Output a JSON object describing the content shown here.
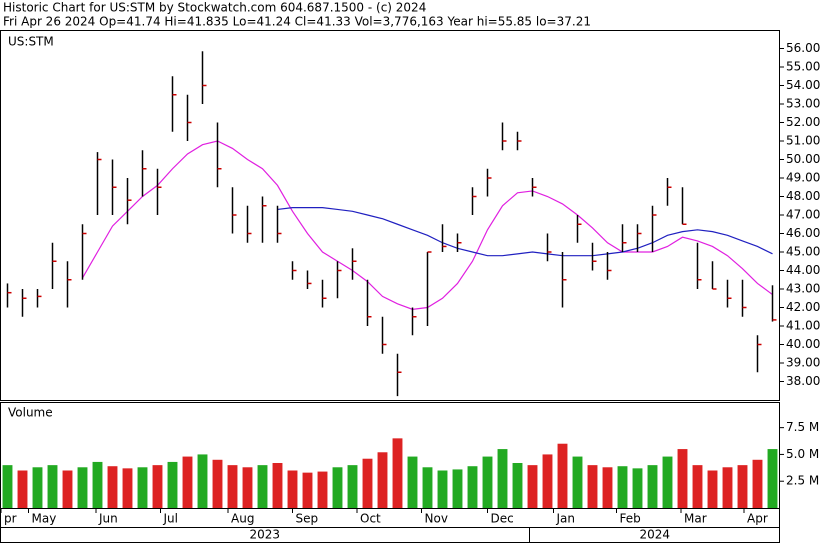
{
  "header": {
    "title": "Historic Chart for US:STM by Stockwatch.com 604.687.1500 - (c) 2024",
    "quote": "Fri Apr 26 2024  Op=41.74  Hi=41.835  Lo=41.24  Cl=41.33  Vol=3,776,163  Year hi=55.85  lo=37.21"
  },
  "chart_data": {
    "type": "ohlc",
    "symbol": "US:STM",
    "bar_color": "#000000",
    "close_color": "#cc0000",
    "x": [
      0,
      1,
      2,
      3,
      4,
      5,
      6,
      7,
      8,
      9,
      10,
      11,
      12,
      13,
      14,
      15,
      16,
      17,
      18,
      19,
      20,
      21,
      22,
      23,
      24,
      25,
      26,
      27,
      28,
      29,
      30,
      31,
      32,
      33,
      34,
      35,
      36,
      37,
      38,
      39,
      40,
      41,
      42,
      43,
      44,
      45,
      46,
      47,
      48,
      49,
      50,
      51
    ],
    "high": [
      43.3,
      43,
      43,
      45.5,
      44.5,
      46.5,
      50.4,
      50,
      49,
      50.5,
      49.5,
      54.5,
      53.5,
      55.85,
      52,
      48.5,
      47.5,
      48,
      47.5,
      44.5,
      44,
      43.5,
      44.5,
      45.2,
      43.5,
      41.5,
      39.5,
      42,
      45,
      46.5,
      46,
      48.5,
      49.5,
      52,
      51.5,
      49,
      46,
      45,
      47,
      45.5,
      45,
      46.5,
      46.5,
      47.5,
      49,
      48.5,
      45.5,
      44.5,
      43.5,
      43.5,
      40.5,
      43.2
    ],
    "low": [
      42,
      41.5,
      42,
      43,
      42,
      43.5,
      47,
      47,
      46.5,
      48,
      47,
      51.5,
      51,
      53,
      48.5,
      46,
      45.5,
      45.5,
      45.5,
      43.5,
      43,
      42,
      42.5,
      43.5,
      41,
      39.5,
      37.21,
      40.5,
      41,
      45,
      45,
      47,
      48,
      50.5,
      50.5,
      48,
      44.5,
      42,
      45.5,
      44,
      43.5,
      45,
      45,
      45,
      47.5,
      46.5,
      43,
      43,
      42,
      41.5,
      38.5,
      41.24
    ],
    "close": [
      42.8,
      42.5,
      42.6,
      44.5,
      43.5,
      46,
      50,
      48.5,
      47.8,
      49.5,
      48.5,
      53.5,
      52,
      54,
      49.5,
      47,
      46,
      47.5,
      46,
      44,
      43.3,
      42.5,
      44,
      44.5,
      41.5,
      40,
      38.5,
      41.5,
      45,
      45.3,
      45.5,
      48,
      49,
      51,
      51,
      48.5,
      45,
      43.5,
      46.5,
      44.5,
      44,
      45.5,
      46,
      47,
      48.5,
      46.5,
      43.5,
      43,
      42.5,
      42,
      40,
      41.33
    ],
    "lines": [
      {
        "color": "#e020e0",
        "values": [
          null,
          null,
          null,
          null,
          null,
          43.6,
          45,
          46.4,
          47.2,
          48,
          48.6,
          49.5,
          50.3,
          50.8,
          51,
          50.6,
          50,
          49.5,
          48.6,
          47.2,
          46,
          45,
          44.5,
          44,
          43.4,
          42.6,
          42.2,
          41.9,
          42,
          42.5,
          43.3,
          44.5,
          46.2,
          47.5,
          48.2,
          48.3,
          48,
          47.6,
          47,
          46.3,
          45.5,
          45,
          45,
          45,
          45.3,
          45.8,
          45.6,
          45.3,
          44.8,
          44.1,
          43.3,
          42.7
        ]
      },
      {
        "color": "#2020c0",
        "values": [
          null,
          null,
          null,
          null,
          null,
          null,
          null,
          null,
          null,
          null,
          null,
          null,
          null,
          null,
          null,
          null,
          null,
          null,
          47.3,
          47.4,
          47.4,
          47.4,
          47.3,
          47.2,
          47,
          46.8,
          46.5,
          46.2,
          45.9,
          45.5,
          45.2,
          45,
          44.8,
          44.8,
          44.9,
          45,
          44.9,
          44.8,
          44.8,
          44.8,
          44.9,
          45,
          45.2,
          45.5,
          45.9,
          46.1,
          46.2,
          46.1,
          45.9,
          45.6,
          45.3,
          44.9
        ]
      }
    ],
    "xlim": [
      -0.5,
      51.5
    ],
    "ylim": [
      37,
      57
    ],
    "yticks": [
      {
        "value": 38,
        "label": "38.00"
      },
      {
        "value": 39,
        "label": "39.00"
      },
      {
        "value": 40,
        "label": "40.00"
      },
      {
        "value": 41,
        "label": "41.00"
      },
      {
        "value": 42,
        "label": "42.00"
      },
      {
        "value": 43,
        "label": "43.00"
      },
      {
        "value": 44,
        "label": "44.00"
      },
      {
        "value": 45,
        "label": "45.00"
      },
      {
        "value": 46,
        "label": "46.00"
      },
      {
        "value": 47,
        "label": "47.00"
      },
      {
        "value": 48,
        "label": "48.00"
      },
      {
        "value": 49,
        "label": "49.00"
      },
      {
        "value": 50,
        "label": "50.00"
      },
      {
        "value": 51,
        "label": "51.00"
      },
      {
        "value": 52,
        "label": "52.00"
      },
      {
        "value": 53,
        "label": "53.00"
      },
      {
        "value": 54,
        "label": "54.00"
      },
      {
        "value": 55,
        "label": "55.00"
      },
      {
        "value": 56,
        "label": "56.00"
      }
    ],
    "xticks": [
      {
        "value": -0.5,
        "label": "pr"
      },
      {
        "value": 1.4,
        "label": "May"
      },
      {
        "value": 5.9,
        "label": "Jun"
      },
      {
        "value": 10.2,
        "label": "Jul"
      },
      {
        "value": 14.7,
        "label": "Aug"
      },
      {
        "value": 19,
        "label": "Sep"
      },
      {
        "value": 23.3,
        "label": "Oct"
      },
      {
        "value": 27.6,
        "label": "Nov"
      },
      {
        "value": 32,
        "label": "Dec"
      },
      {
        "value": 36.4,
        "label": "Jan"
      },
      {
        "value": 40.6,
        "label": "Feb"
      },
      {
        "value": 44.9,
        "label": "Mar"
      },
      {
        "value": 49.1,
        "label": "Apr"
      }
    ],
    "year_ticks": [
      {
        "value": -0.5,
        "label": "2023"
      },
      {
        "value": 34.8,
        "label": "2024"
      }
    ],
    "volume": {
      "label": "Volume",
      "up_color": "#22aa22",
      "down_color": "#dd2222",
      "values": [
        4,
        3.5,
        3.8,
        4,
        3.5,
        3.8,
        4.3,
        3.9,
        3.7,
        3.8,
        4,
        4.3,
        4.8,
        5,
        4.5,
        4,
        3.8,
        4,
        4.2,
        3.5,
        3.3,
        3.4,
        3.8,
        4,
        4.6,
        5.2,
        6.5,
        4.8,
        3.8,
        3.5,
        3.6,
        3.9,
        4.8,
        5.5,
        4.2,
        4,
        5,
        6,
        4.8,
        4,
        3.8,
        3.9,
        3.7,
        4,
        4.8,
        5.5,
        4,
        3.5,
        3.8,
        4,
        4.5,
        5.5
      ],
      "ylim": [
        0,
        9.8
      ],
      "yticks": [
        {
          "value": 2.5,
          "label": "2.5 M"
        },
        {
          "value": 5,
          "label": "5.0 M"
        },
        {
          "value": 7.5,
          "label": "7.5 M"
        }
      ]
    }
  }
}
